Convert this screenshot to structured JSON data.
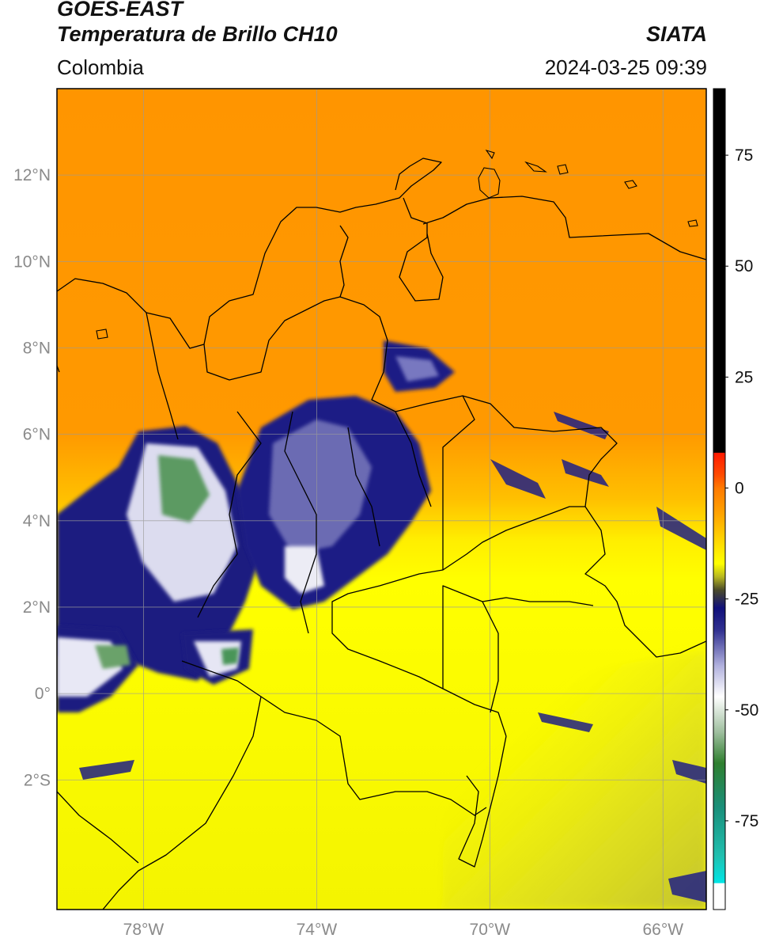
{
  "header": {
    "satellite": "GOES-EAST",
    "product": "Temperatura de Brillo CH10",
    "region": "Colombia",
    "source": "SIATA",
    "datetime": "2024-03-25 09:39"
  },
  "map": {
    "lon_range": [
      -80,
      -65
    ],
    "lat_range": [
      -5,
      14
    ],
    "lat_ticks": [
      {
        "value": 12,
        "label": "12°N"
      },
      {
        "value": 10,
        "label": "10°N"
      },
      {
        "value": 8,
        "label": "8°N"
      },
      {
        "value": 6,
        "label": "6°N"
      },
      {
        "value": 4,
        "label": "4°N"
      },
      {
        "value": 2,
        "label": "2°N"
      },
      {
        "value": 0,
        "label": "0°"
      },
      {
        "value": -2,
        "label": "2°S"
      }
    ],
    "lon_ticks": [
      {
        "value": -78,
        "label": "78°W"
      },
      {
        "value": -74,
        "label": "74°W"
      },
      {
        "value": -70,
        "label": "70°W"
      },
      {
        "value": -66,
        "label": "66°W"
      }
    ],
    "colors": {
      "warm_orange": "#ff8c00",
      "yellow": "#ffff00",
      "dark_yellow": "#cfcf2a",
      "navy": "#1a1a80",
      "white_cloud": "#f2f2f2",
      "green_cloud": "#3f8f4f",
      "grid": "#9a9a9a",
      "border": "#000000"
    }
  },
  "colorbar": {
    "range": [
      -95,
      90
    ],
    "ticks": [
      {
        "value": 75,
        "label": "75"
      },
      {
        "value": 50,
        "label": "50"
      },
      {
        "value": 25,
        "label": "25"
      },
      {
        "value": 0,
        "label": "0"
      },
      {
        "value": -25,
        "label": "-25"
      },
      {
        "value": -50,
        "label": "-50"
      },
      {
        "value": -75,
        "label": "-75"
      }
    ],
    "stops": [
      {
        "value": 90,
        "color": "#000000"
      },
      {
        "value": 8,
        "color": "#000000"
      },
      {
        "value": 7.9,
        "color": "#ff1a00"
      },
      {
        "value": 3,
        "color": "#ff4a00"
      },
      {
        "value": 0,
        "color": "#ff7a00"
      },
      {
        "value": -6,
        "color": "#ffa500"
      },
      {
        "value": -13,
        "color": "#ffe000"
      },
      {
        "value": -17,
        "color": "#ffff00"
      },
      {
        "value": -20,
        "color": "#b8b820"
      },
      {
        "value": -23,
        "color": "#4a4a2a"
      },
      {
        "value": -27,
        "color": "#10107a"
      },
      {
        "value": -32,
        "color": "#303090"
      },
      {
        "value": -40,
        "color": "#b0b0dd"
      },
      {
        "value": -47,
        "color": "#ffffff"
      },
      {
        "value": -55,
        "color": "#9fbf9f"
      },
      {
        "value": -62,
        "color": "#2f7f2f"
      },
      {
        "value": -72,
        "color": "#1a8f7a"
      },
      {
        "value": -83,
        "color": "#20c0b0"
      },
      {
        "value": -89,
        "color": "#00e5e5"
      },
      {
        "value": -89.1,
        "color": "#ffffff"
      },
      {
        "value": -95,
        "color": "#ffffff"
      }
    ]
  }
}
